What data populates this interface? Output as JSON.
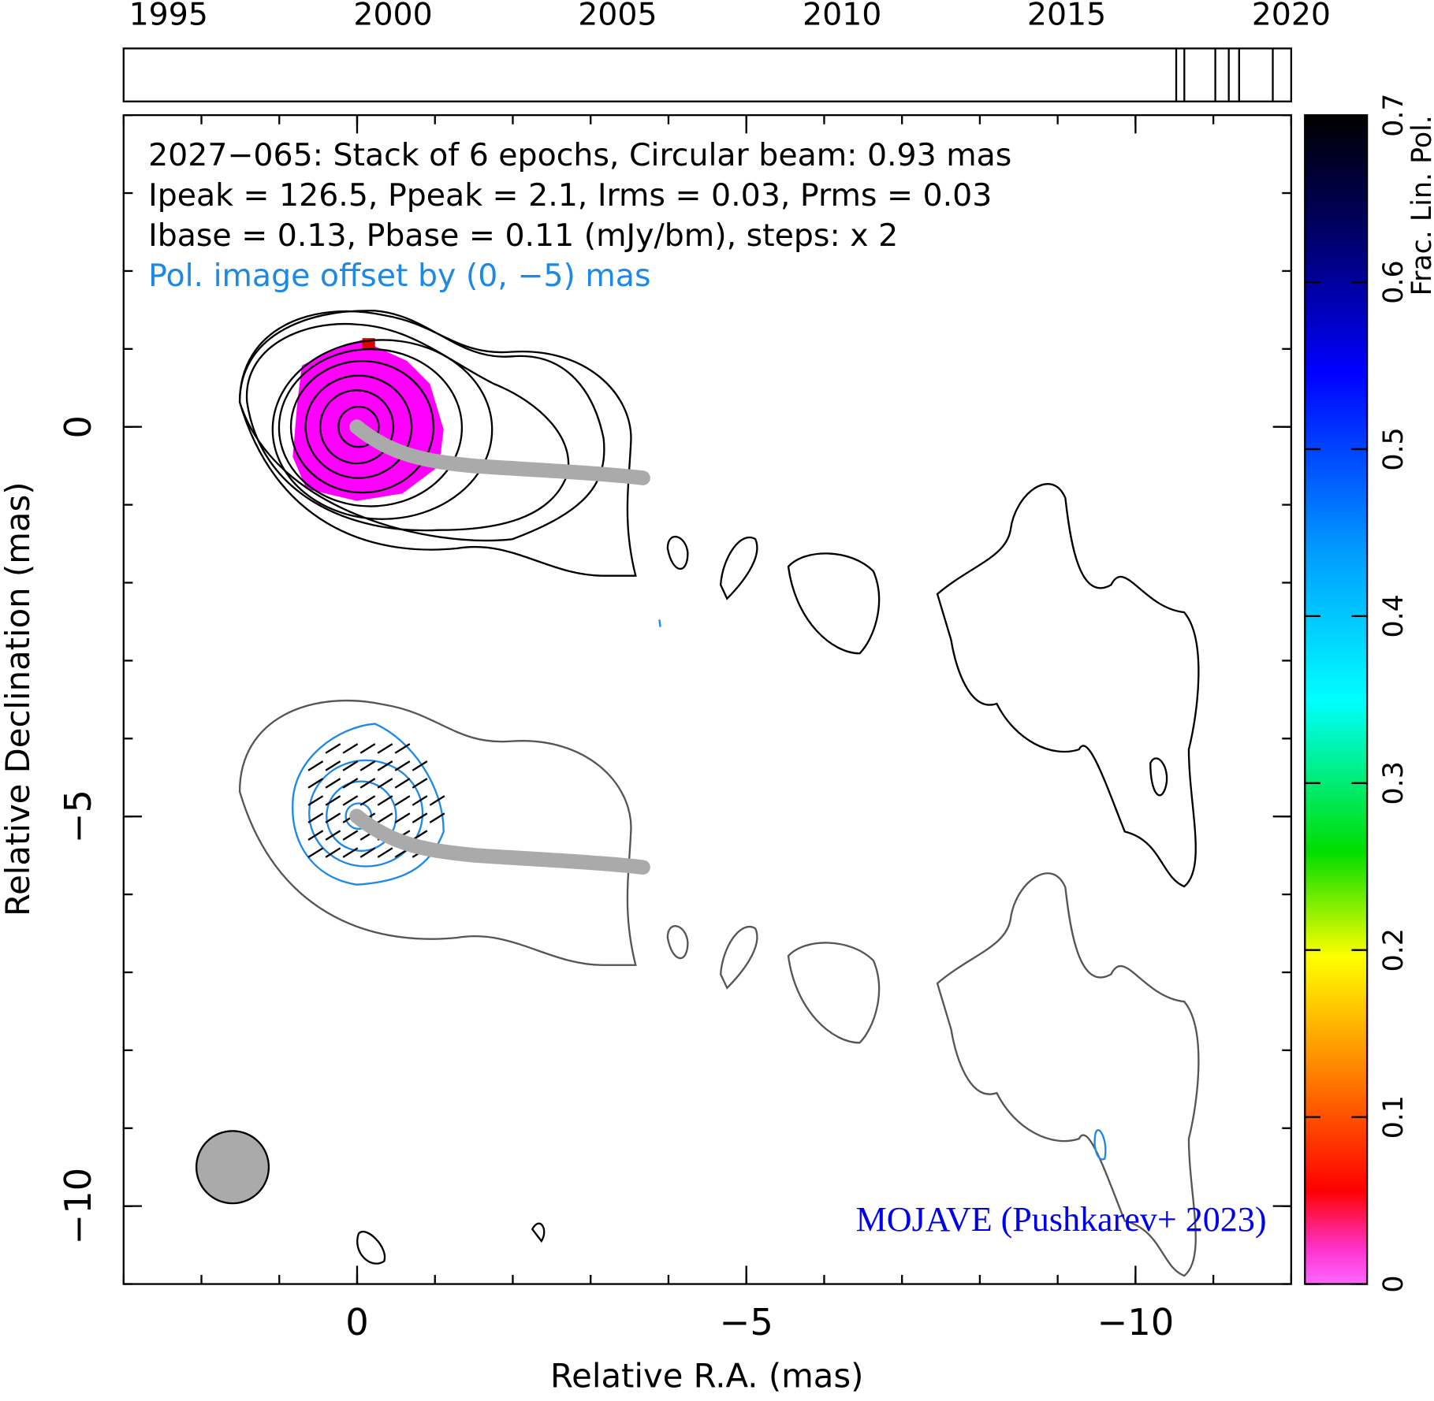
{
  "chart_data": [
    {
      "type": "timeline",
      "x": [
        2017.44,
        2017.62,
        2018.31,
        2018.61,
        2018.84,
        2019.59
      ],
      "xlim": [
        1994,
        2020
      ],
      "xticks": [
        1995,
        2000,
        2005,
        2010,
        2015,
        2020
      ]
    },
    {
      "type": "map",
      "text_lines": [
        "2027−065: Stack of 6 epochs, Circular beam: 0.93 mas",
        "Ipeak = 126.5, Ppeak = 2.1, Irms = 0.03, Prms = 0.03",
        "Ibase = 0.13, Pbase = 0.11 (mJy/bm), steps: x 2"
      ],
      "pol_note": "Pol. image offset by (0, −5) mas",
      "credit": "MOJAVE (Pushkarev+ 2023)",
      "xlabel": "Relative R.A. (mas)",
      "ylabel": "Relative Declination (mas)",
      "xlim": [
        3,
        -12
      ],
      "ylim": [
        -11,
        4
      ],
      "xticks": [
        0,
        {
          "value": -5,
          "label": "−5"
        },
        {
          "value": -10,
          "label": "−10"
        }
      ],
      "yticks": [
        0,
        {
          "value": -5,
          "label": "−5"
        },
        {
          "value": -10,
          "label": "−10"
        }
      ],
      "beam": {
        "ra": 1.6,
        "dec": -9.5,
        "diameter": 0.93,
        "color": "#aaaaaa"
      },
      "colorbar": {
        "label": "Frac. Lin. Pol.",
        "lim": [
          0,
          0.7
        ],
        "ticks": [
          0,
          0.1,
          0.2,
          0.3,
          0.4,
          0.5,
          0.6,
          0.7
        ]
      }
    }
  ]
}
